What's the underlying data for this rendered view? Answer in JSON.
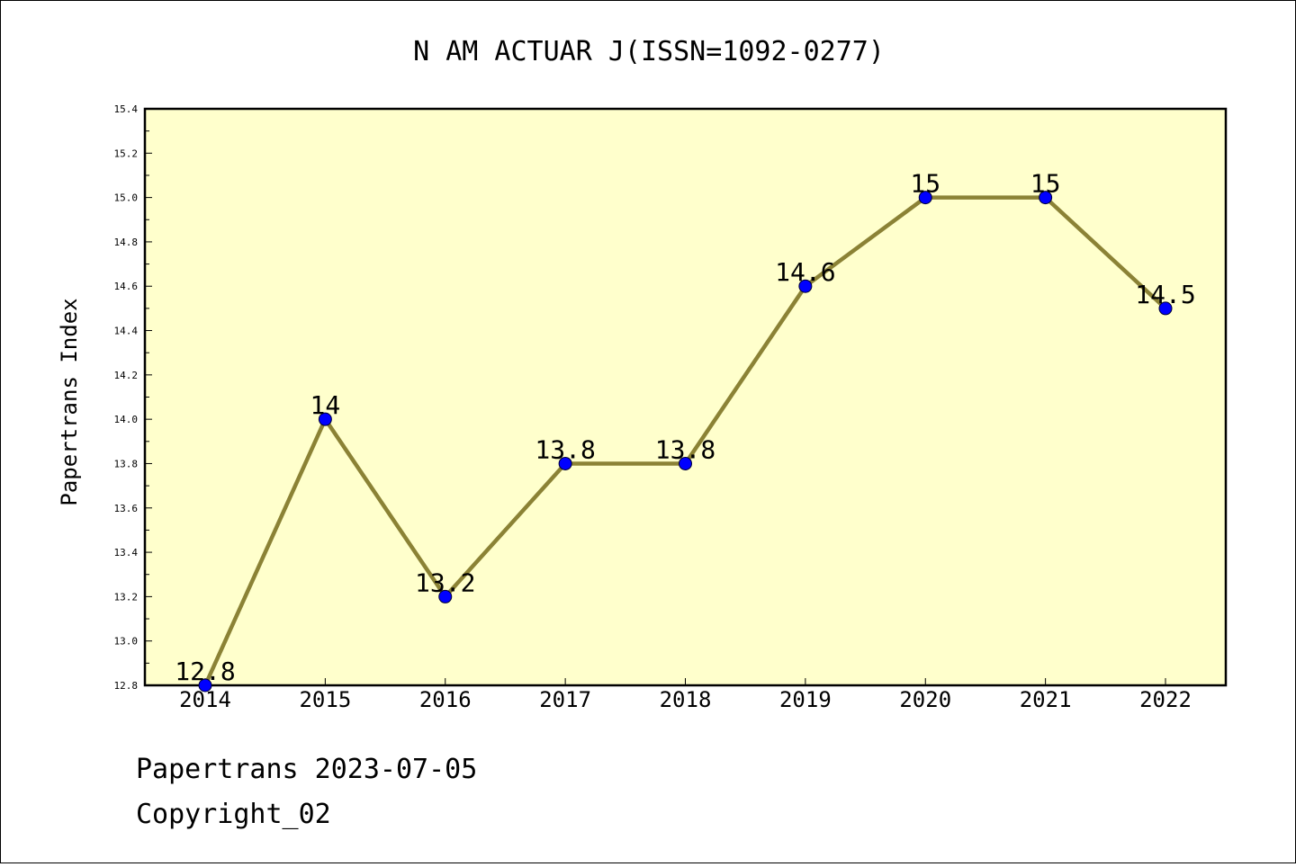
{
  "chart_data": {
    "type": "line",
    "title": "N AM ACTUAR J(ISSN=1092-0277)",
    "xlabel": "",
    "ylabel": "Papertrans Index",
    "x": [
      "2014",
      "2015",
      "2016",
      "2017",
      "2018",
      "2019",
      "2020",
      "2021",
      "2022"
    ],
    "series": [
      {
        "values": [
          12.8,
          14,
          13.2,
          13.8,
          13.8,
          14.6,
          15,
          15,
          14.5
        ],
        "data_labels": [
          "12.8",
          "14",
          "13.2",
          "13.8",
          "13.8",
          "14.6",
          "15",
          "15",
          "14.5"
        ]
      }
    ],
    "ylim": [
      12.8,
      15.4
    ],
    "yticks": [
      "12.8",
      "13.0",
      "13.2",
      "13.4",
      "13.6",
      "13.8",
      "14.0",
      "14.2",
      "14.4",
      "14.6",
      "14.8",
      "15.0",
      "15.2",
      "15.4"
    ],
    "grid": false,
    "legend": "none",
    "colors": {
      "plot_background": "#ffffcc",
      "line": "#8b8235",
      "marker": "#0000ff",
      "marker_edge": "#000033"
    }
  },
  "footer": {
    "date_line": "Papertrans 2023-07-05",
    "copyright": "Copyright_02"
  }
}
